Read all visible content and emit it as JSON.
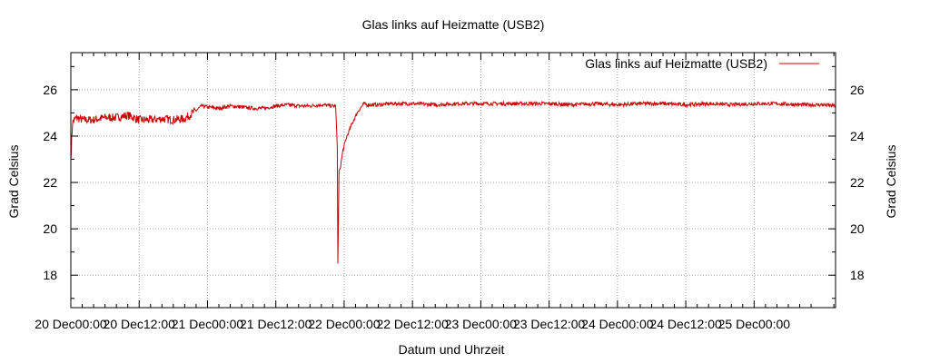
{
  "chart_data": {
    "type": "line",
    "title": "Glas links auf Heizmatte (USB2)",
    "xlabel": "Datum und Uhrzeit",
    "ylabel": "Grad Celsius",
    "y2label": "Grad Celsius",
    "ylim": [
      16.6,
      27.6
    ],
    "yticks": [
      18,
      20,
      22,
      24,
      26
    ],
    "xlim": [
      0,
      134.3
    ],
    "x_unit": "hours from 20 Dec 00:00",
    "xtick_labels": [
      "20 Dec00:00",
      "20 Dec12:00",
      "21 Dec00:00",
      "21 Dec12:00",
      "22 Dec00:00",
      "22 Dec12:00",
      "23 Dec00:00",
      "23 Dec12:00",
      "24 Dec00:00",
      "24 Dec12:00",
      "25 Dec00:00"
    ],
    "xtick_positions": [
      0,
      12,
      24,
      36,
      48,
      60,
      72,
      84,
      96,
      108,
      120
    ],
    "grid": true,
    "legend_position": "top-right",
    "series": [
      {
        "name": "Glas links auf Heizmatte (USB2)",
        "color": "#cc0000",
        "x": [
          0,
          0.3,
          0.6,
          1,
          2,
          4,
          6,
          8,
          10,
          12,
          14,
          16,
          18,
          20,
          22,
          23,
          24,
          26,
          28,
          30,
          32,
          34,
          36,
          38,
          40,
          42,
          44,
          46,
          46.5,
          46.8,
          46.9,
          47.0,
          47.1,
          47.3,
          47.8,
          48.5,
          49.5,
          50.5,
          51.5,
          52,
          54,
          56,
          58,
          60,
          64,
          68,
          72,
          76,
          80,
          84,
          88,
          92,
          96,
          100,
          104,
          108,
          112,
          116,
          120,
          124,
          128,
          132,
          134.3
        ],
        "values": [
          23.0,
          24.6,
          24.7,
          24.8,
          24.7,
          24.7,
          24.8,
          24.8,
          24.9,
          24.7,
          24.7,
          24.75,
          24.7,
          24.75,
          25.1,
          25.3,
          25.25,
          25.2,
          25.3,
          25.25,
          25.2,
          25.2,
          25.3,
          25.35,
          25.3,
          25.3,
          25.35,
          25.3,
          25.3,
          23.5,
          18.5,
          20.5,
          22.5,
          22.6,
          23.4,
          24.0,
          24.6,
          25.1,
          25.4,
          25.35,
          25.35,
          25.4,
          25.4,
          25.4,
          25.35,
          25.4,
          25.4,
          25.4,
          25.4,
          25.4,
          25.35,
          25.4,
          25.35,
          25.4,
          25.4,
          25.35,
          25.4,
          25.35,
          25.4,
          25.4,
          25.35,
          25.35,
          25.3
        ]
      }
    ]
  }
}
